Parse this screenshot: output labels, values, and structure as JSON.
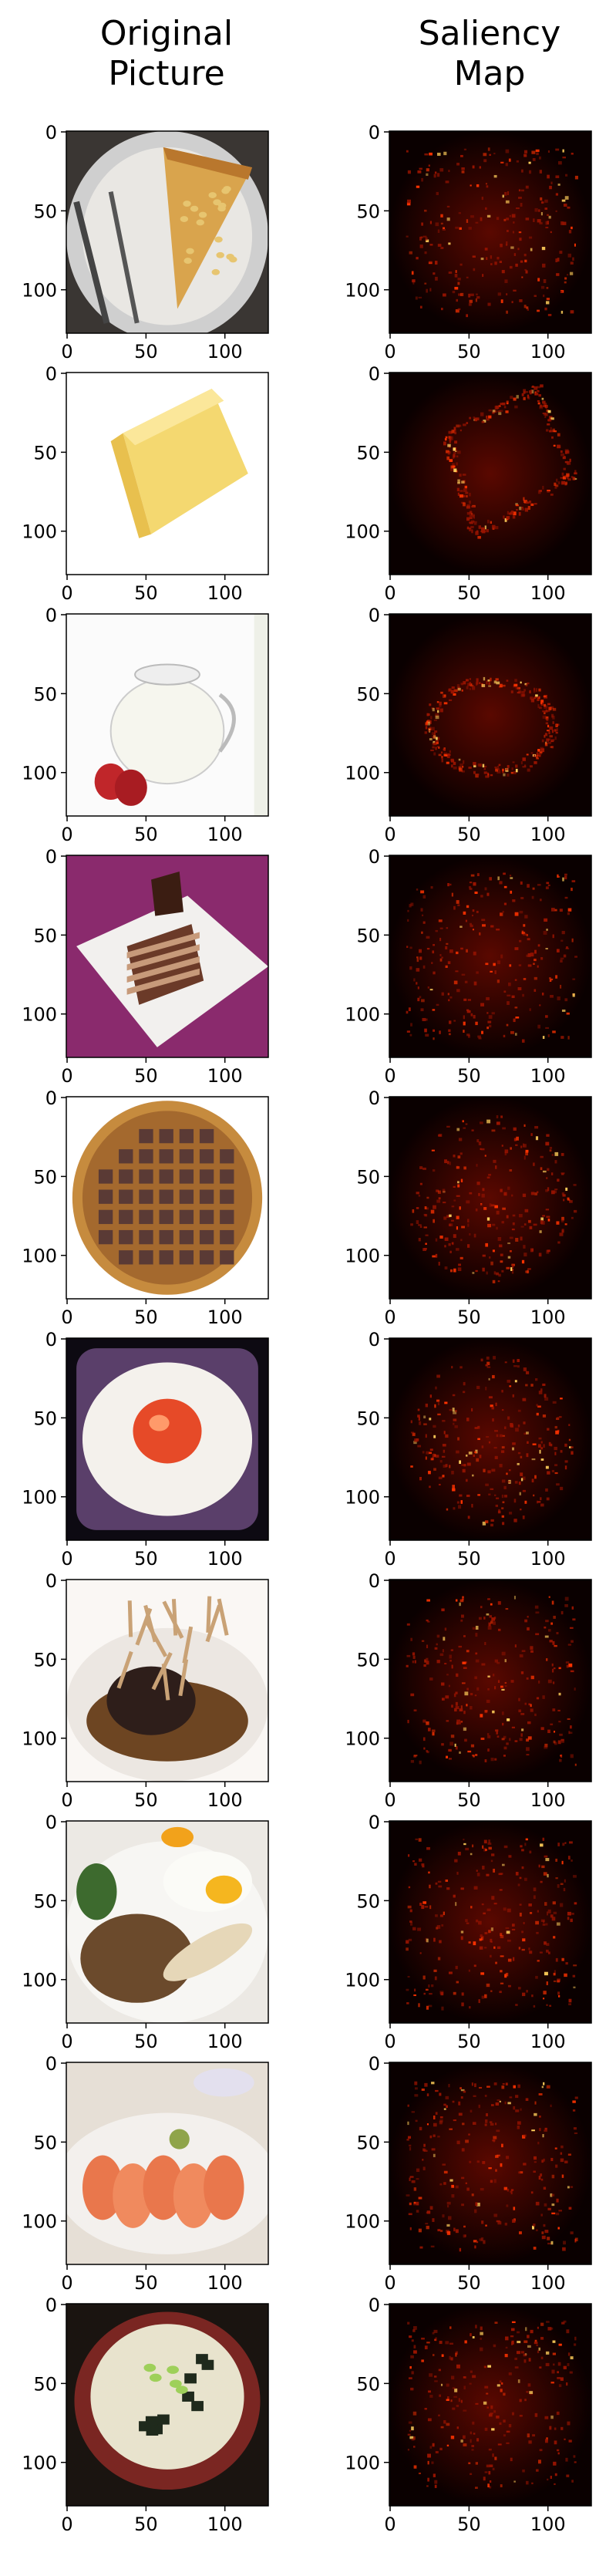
{
  "figure": {
    "columns": [
      {
        "title_line1": "Original",
        "title_line2": "Picture"
      },
      {
        "title_line1": "Saliency",
        "title_line2": "Map"
      }
    ],
    "axis_ticks": [
      "0",
      "50",
      "100"
    ],
    "rows": [
      {
        "food": "pizza-slice-on-plate"
      },
      {
        "food": "butter-block"
      },
      {
        "food": "milk-jug-with-strawberries"
      },
      {
        "food": "chocolate-layer-cake"
      },
      {
        "food": "waffle"
      },
      {
        "food": "fried-egg"
      },
      {
        "food": "steak-with-mushrooms"
      },
      {
        "food": "nasi-lemak-with-egg"
      },
      {
        "food": "salmon-sashimi"
      },
      {
        "food": "miso-soup"
      }
    ]
  },
  "colors": {
    "saliency_background": "#0a0000",
    "saliency_hot": "#ff3300",
    "axis": "#000000"
  }
}
